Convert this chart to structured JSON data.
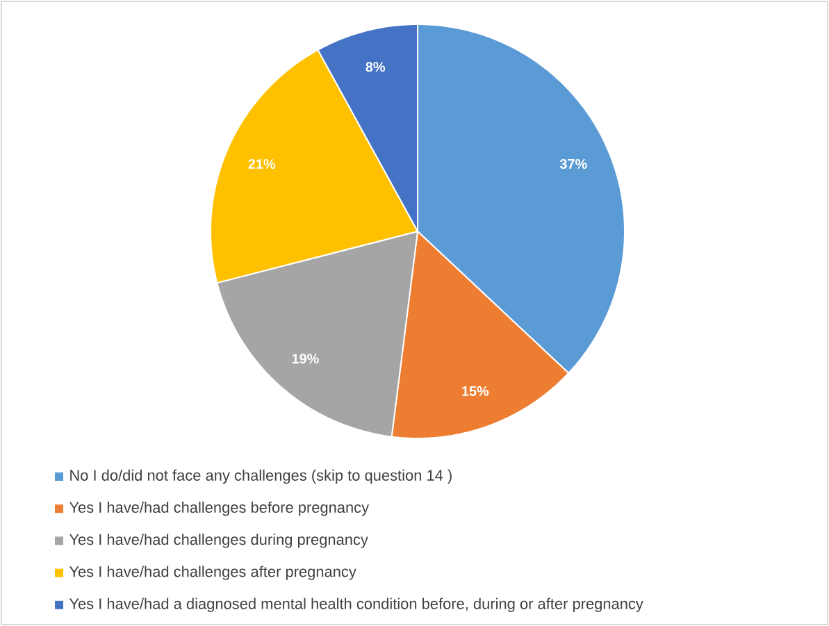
{
  "chart_data": {
    "type": "pie",
    "categories": [
      "No I do/did not face any challenges (skip to question 14 )",
      "Yes I have/had challenges before pregnancy",
      "Yes I have/had challenges during pregnancy",
      "Yes I have/had challenges after pregnancy",
      "Yes I have/had a diagnosed mental health condition before, during or after pregnancy"
    ],
    "values": [
      37,
      15,
      19,
      21,
      8
    ],
    "colors": [
      "#5b9bd5",
      "#ed7d31",
      "#a5a5a5",
      "#ffc000",
      "#4472c4"
    ],
    "value_labels": [
      "37%",
      "15%",
      "19%",
      "21%",
      "8%"
    ],
    "legend": "bottom"
  }
}
